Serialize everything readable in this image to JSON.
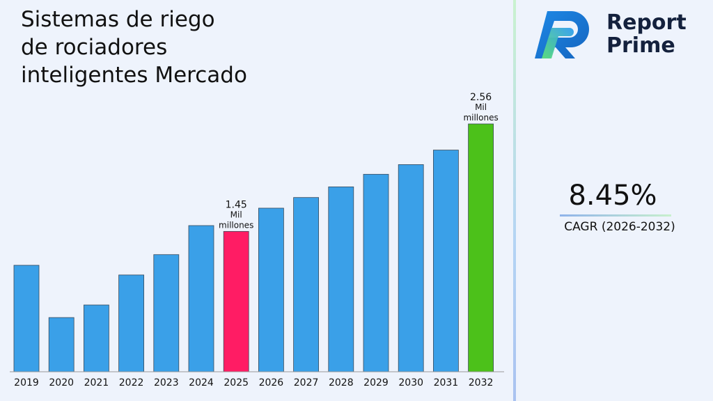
{
  "chart_data": {
    "type": "bar",
    "title": "Sistemas de riego\nde rociadores\ninteligentes Mercado",
    "xlabel": "",
    "ylabel": "",
    "ylim": [
      0,
      2.56
    ],
    "grid": false,
    "categories": [
      "2019",
      "2020",
      "2021",
      "2022",
      "2023",
      "2024",
      "2025",
      "2026",
      "2027",
      "2028",
      "2029",
      "2030",
      "2031",
      "2032"
    ],
    "values": [
      1.1,
      0.56,
      0.69,
      1.0,
      1.21,
      1.51,
      1.45,
      1.69,
      1.8,
      1.91,
      2.04,
      2.14,
      2.29,
      2.56
    ],
    "colors": {
      "default": "#3aa0e8",
      "highlight_2025": "#ff1c64",
      "highlight_2032": "#4cc11a"
    },
    "data_labels": [
      {
        "category": "2025",
        "value": "1.45",
        "unit_line1": "Mil",
        "unit_line2": "millones"
      },
      {
        "category": "2032",
        "value": "2.56",
        "unit_line1": "Mil",
        "unit_line2": "millones"
      }
    ]
  },
  "brand": {
    "line1": "Report",
    "line2": "Prime"
  },
  "cagr": {
    "value": "8.45%",
    "label": "CAGR (2026-2032)"
  }
}
